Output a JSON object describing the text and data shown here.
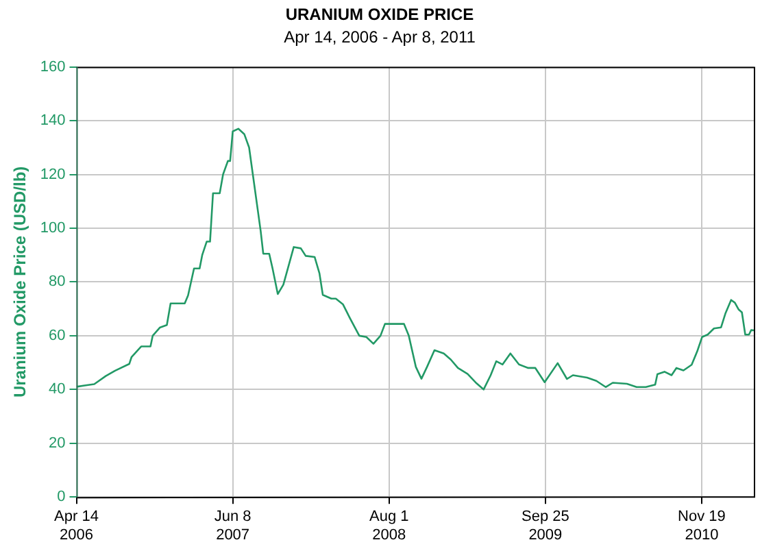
{
  "chart_data": {
    "type": "line",
    "title": "URANIUM OXIDE PRICE",
    "subtitle": "Apr 14, 2006 - Apr 8, 2011",
    "ylabel": "Uranium Oxide Price (USD/lb)",
    "xlim": [
      "2006-04-14",
      "2011-04-08"
    ],
    "xticks": [
      {
        "value": "2006-04-14",
        "label": "Apr 14\n2006"
      },
      {
        "value": "2007-06-08",
        "label": "Jun 8\n2007"
      },
      {
        "value": "2008-08-01",
        "label": "Aug 1\n2008"
      },
      {
        "value": "2009-09-25",
        "label": "Sep 25\n2009"
      },
      {
        "value": "2010-11-19",
        "label": "Nov 19\n2010"
      }
    ],
    "ylim": [
      0,
      160
    ],
    "yticks": [
      0,
      20,
      40,
      60,
      80,
      100,
      120,
      140,
      160
    ],
    "grid": true,
    "legend": false,
    "marker": "none",
    "line_style": "solid",
    "series": [
      {
        "color": "#229966",
        "x": [
          "2006-04-14",
          "2006-05-06",
          "2006-06-01",
          "2006-07-02",
          "2006-07-27",
          "2006-09-03",
          "2006-09-09",
          "2006-10-05",
          "2006-10-30",
          "2006-11-05",
          "2006-11-24",
          "2006-12-13",
          "2006-12-23",
          "2007-01-30",
          "2007-02-08",
          "2007-02-24",
          "2007-03-11",
          "2007-03-18",
          "2007-03-30",
          "2007-04-08",
          "2007-04-16",
          "2007-05-04",
          "2007-05-13",
          "2007-05-26",
          "2007-06-01",
          "2007-06-08",
          "2007-06-23",
          "2007-07-09",
          "2007-07-22",
          "2007-08-01",
          "2007-08-12",
          "2007-08-22",
          "2007-08-29",
          "2007-09-14",
          "2007-09-23",
          "2007-10-07",
          "2007-10-22",
          "2007-11-03",
          "2007-11-19",
          "2007-12-08",
          "2007-12-21",
          "2008-01-14",
          "2008-01-27",
          "2008-02-05",
          "2008-02-28",
          "2008-03-11",
          "2008-03-30",
          "2008-04-18",
          "2008-05-13",
          "2008-06-01",
          "2008-06-20",
          "2008-07-09",
          "2008-07-21",
          "2008-09-10",
          "2008-09-23",
          "2008-10-12",
          "2008-10-27",
          "2008-11-11",
          "2008-12-01",
          "2008-12-26",
          "2009-01-14",
          "2009-02-02",
          "2009-02-28",
          "2009-03-24",
          "2009-04-12",
          "2009-05-01",
          "2009-05-16",
          "2009-06-02",
          "2009-06-23",
          "2009-07-16",
          "2009-08-10",
          "2009-08-29",
          "2009-09-23",
          "2009-10-28",
          "2009-11-22",
          "2009-12-08",
          "2010-01-15",
          "2010-02-09",
          "2010-03-06",
          "2010-03-25",
          "2010-05-02",
          "2010-05-28",
          "2010-06-22",
          "2010-07-17",
          "2010-07-23",
          "2010-08-11",
          "2010-08-30",
          "2010-09-12",
          "2010-10-01",
          "2010-10-23",
          "2010-11-07",
          "2010-11-20",
          "2010-12-05",
          "2010-12-22",
          "2011-01-10",
          "2011-01-22",
          "2011-02-06",
          "2011-02-16",
          "2011-02-26",
          "2011-03-07",
          "2011-03-16",
          "2011-03-26",
          "2011-04-01",
          "2011-04-08"
        ],
        "values": [
          41,
          41.5,
          42,
          45,
          47,
          49.5,
          52,
          56,
          56,
          60,
          63,
          64,
          72,
          72,
          75,
          85,
          85,
          90,
          95,
          95,
          113,
          113,
          120,
          125,
          125,
          136,
          137,
          135,
          130,
          120,
          109,
          99,
          90.5,
          90.5,
          85,
          75.5,
          79,
          85,
          93,
          92.5,
          89.7,
          89.3,
          83.2,
          75.2,
          73.8,
          73.8,
          71.7,
          66.5,
          60,
          59.5,
          57,
          60,
          64.4,
          64.4,
          60,
          48.4,
          44,
          48.4,
          54.6,
          53.4,
          51.1,
          48,
          45.8,
          42.3,
          40,
          45.3,
          50.5,
          49.3,
          53.4,
          49.3,
          48,
          48,
          42.7,
          49.8,
          43.9,
          45.3,
          44.4,
          43.2,
          40.9,
          42.5,
          42.1,
          40.9,
          40.9,
          41.8,
          45.7,
          46.6,
          45.3,
          48,
          47.1,
          49.2,
          54.2,
          59.5,
          60.4,
          62.7,
          63.1,
          68.4,
          73.3,
          72.3,
          69.8,
          68.7,
          60.4,
          60.4,
          62.1,
          62
        ]
      }
    ]
  }
}
